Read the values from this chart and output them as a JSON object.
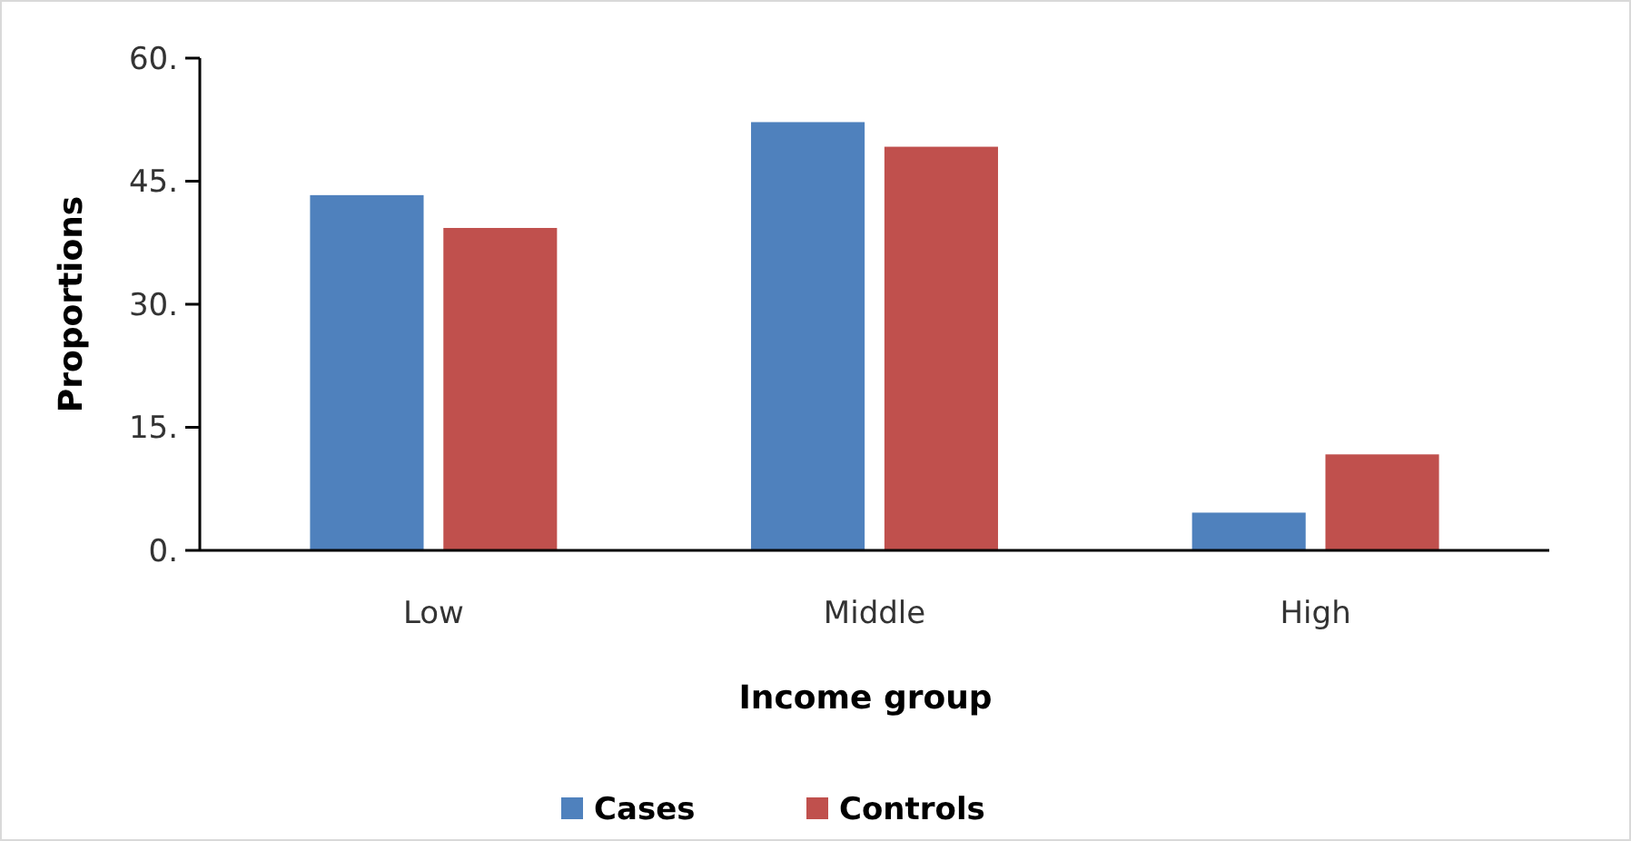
{
  "chart_data": {
    "type": "bar",
    "xlabel": "Income group",
    "ylabel": "Proportions",
    "categories": [
      "Low",
      "Middle",
      "High"
    ],
    "series": [
      {
        "name": "Cases",
        "color": "#4f81bd",
        "values": [
          43.3,
          52.2,
          4.6
        ]
      },
      {
        "name": "Controls",
        "color": "#c0504d",
        "values": [
          39.3,
          49.2,
          11.7
        ]
      }
    ],
    "ylim": [
      0,
      60
    ],
    "yticks": [
      {
        "value": 0,
        "label": "0."
      },
      {
        "value": 15,
        "label": "15."
      },
      {
        "value": 30,
        "label": "30."
      },
      {
        "value": 45,
        "label": "45."
      },
      {
        "value": 60,
        "label": "60."
      }
    ],
    "grid": false,
    "legend": "bottom"
  }
}
